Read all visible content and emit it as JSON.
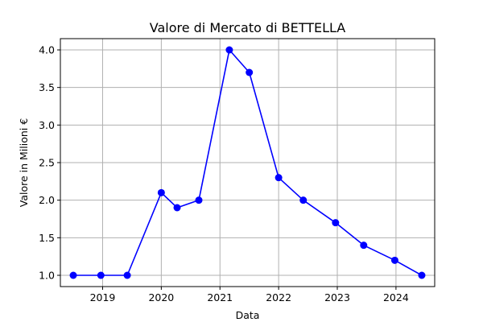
{
  "chart_data": {
    "type": "line",
    "title": "Valore di Mercato di BETTELLA",
    "xlabel": "Data",
    "ylabel": "Valore in Milioni €",
    "x_ticks": [
      "2019",
      "2020",
      "2021",
      "2022",
      "2023",
      "2024"
    ],
    "y_ticks": [
      "1.0",
      "1.5",
      "2.0",
      "2.5",
      "3.0",
      "3.5",
      "4.0"
    ],
    "ylim": [
      0.85,
      4.15
    ],
    "grid": true,
    "series_color": "#0000ff",
    "x": [
      2018.5,
      2018.97,
      2019.42,
      2020.0,
      2020.27,
      2020.64,
      2021.16,
      2021.5,
      2022.0,
      2022.42,
      2022.97,
      2023.45,
      2023.98,
      2024.44
    ],
    "values": [
      1.0,
      1.0,
      1.0,
      2.1,
      1.9,
      2.0,
      4.0,
      3.7,
      2.3,
      2.0,
      1.7,
      1.4,
      1.2,
      1.0
    ]
  }
}
